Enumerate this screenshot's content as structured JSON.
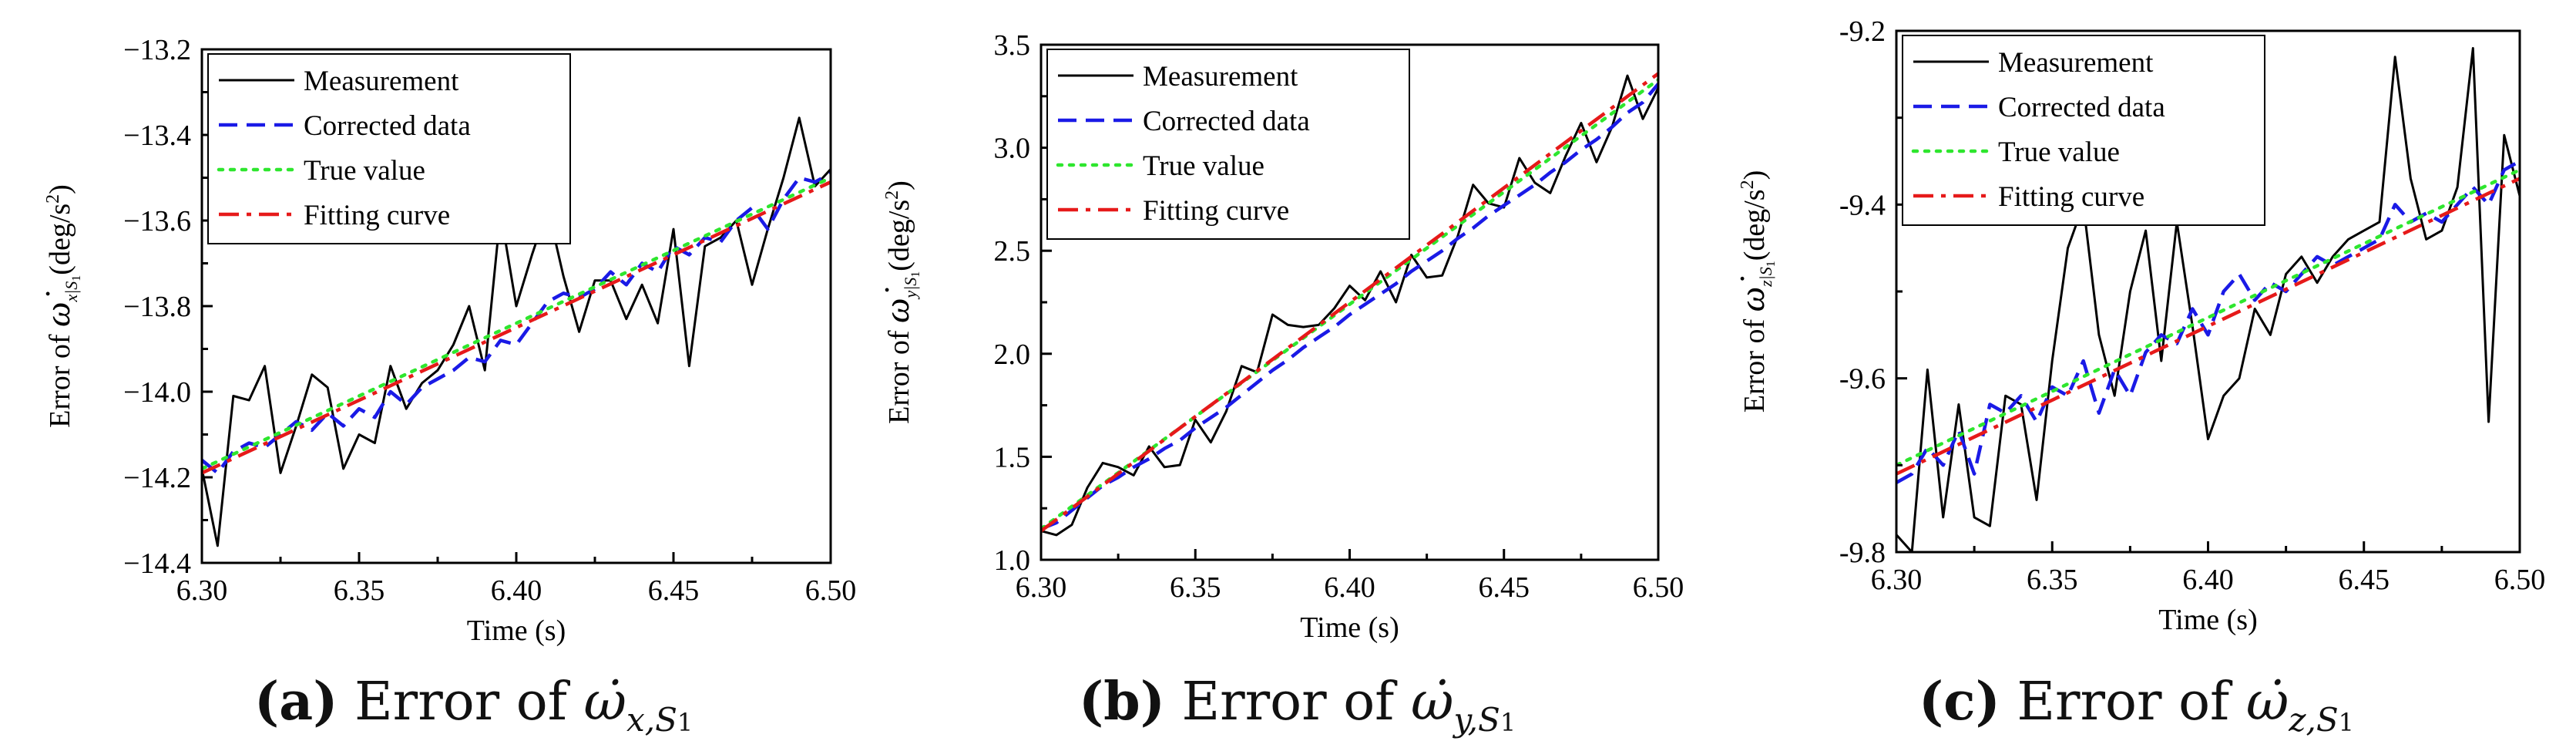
{
  "captions": [
    {
      "tag": "(a)",
      "text": "Error of",
      "sym": "ω̇",
      "sub": "x,S",
      "sub2": "1"
    },
    {
      "tag": "(b)",
      "text": "Error of",
      "sym": "ω̇",
      "sub": "y,S",
      "sub2": "1"
    },
    {
      "tag": "(c)",
      "text": "Error of",
      "sym": "ω̇",
      "sub": "z,S",
      "sub2": "1"
    }
  ],
  "colors": {
    "measurement": "#000000",
    "corrected": "#1a1ae6",
    "true": "#2ee62e",
    "fitting": "#e61a1a"
  },
  "chart_data": [
    {
      "type": "line",
      "title": "",
      "xlabel": "Time (s)",
      "ylabel_prefix": "Error of ",
      "ylabel_sym": "ω̇",
      "ylabel_sub": "x|S",
      "ylabel_sub2": "1",
      "ylabel_unit": "(deg/s",
      "ylabel_exp": "2",
      "ylabel_end": ")",
      "xlim": [
        6.3,
        6.5
      ],
      "ylim": [
        -14.4,
        -13.2
      ],
      "xticks": [
        6.3,
        6.35,
        6.4,
        6.45,
        6.5
      ],
      "xtick_labels": [
        "6.30",
        "6.35",
        "6.40",
        "6.45",
        "6.50"
      ],
      "yticks": [
        -14.4,
        -14.2,
        -14.0,
        -13.8,
        -13.6,
        -13.4,
        -13.2
      ],
      "ytick_labels": [
        "−14.4",
        "−14.2",
        "−14.0",
        "−13.8",
        "−13.6",
        "−13.4",
        "−13.2"
      ],
      "legend": [
        "Measurement",
        "Corrected data",
        "True value",
        "Fitting curve"
      ],
      "legend_loc": "top-left",
      "series": [
        {
          "name": "Measurement",
          "style": "solid",
          "color": "#000000",
          "x": [
            6.3,
            6.305,
            6.31,
            6.315,
            6.32,
            6.325,
            6.33,
            6.335,
            6.34,
            6.345,
            6.35,
            6.355,
            6.36,
            6.365,
            6.37,
            6.375,
            6.38,
            6.385,
            6.39,
            6.395,
            6.4,
            6.405,
            6.41,
            6.415,
            6.42,
            6.425,
            6.43,
            6.435,
            6.44,
            6.445,
            6.45,
            6.455,
            6.46,
            6.465,
            6.47,
            6.475,
            6.48,
            6.485,
            6.49,
            6.495,
            6.5
          ],
          "y": [
            -14.18,
            -14.36,
            -14.01,
            -14.02,
            -13.94,
            -14.19,
            -14.08,
            -13.96,
            -13.99,
            -14.18,
            -14.1,
            -14.12,
            -13.94,
            -14.04,
            -13.98,
            -13.95,
            -13.89,
            -13.8,
            -13.95,
            -13.58,
            -13.8,
            -13.68,
            -13.57,
            -13.73,
            -13.86,
            -13.74,
            -13.74,
            -13.83,
            -13.75,
            -13.84,
            -13.62,
            -13.94,
            -13.66,
            -13.64,
            -13.6,
            -13.75,
            -13.62,
            -13.5,
            -13.36,
            -13.52,
            -13.48
          ]
        },
        {
          "name": "Corrected data",
          "style": "dashed",
          "color": "#1a1ae6",
          "x": [
            6.3,
            6.305,
            6.31,
            6.315,
            6.32,
            6.325,
            6.33,
            6.335,
            6.34,
            6.345,
            6.35,
            6.355,
            6.36,
            6.365,
            6.37,
            6.375,
            6.38,
            6.385,
            6.39,
            6.395,
            6.4,
            6.405,
            6.41,
            6.415,
            6.42,
            6.425,
            6.43,
            6.435,
            6.44,
            6.445,
            6.45,
            6.455,
            6.46,
            6.465,
            6.47,
            6.475,
            6.48,
            6.485,
            6.49,
            6.495,
            6.5
          ],
          "y": [
            -14.16,
            -14.19,
            -14.14,
            -14.12,
            -14.13,
            -14.1,
            -14.07,
            -14.09,
            -14.05,
            -14.08,
            -14.04,
            -14.06,
            -14.0,
            -14.03,
            -13.99,
            -13.97,
            -13.95,
            -13.92,
            -13.93,
            -13.88,
            -13.89,
            -13.84,
            -13.79,
            -13.77,
            -13.78,
            -13.76,
            -13.72,
            -13.75,
            -13.7,
            -13.72,
            -13.66,
            -13.68,
            -13.64,
            -13.65,
            -13.6,
            -13.57,
            -13.62,
            -13.55,
            -13.5,
            -13.51,
            -13.49
          ]
        },
        {
          "name": "True value",
          "style": "dotted",
          "color": "#2ee62e",
          "x": [
            6.3,
            6.5
          ],
          "y": [
            -14.18,
            -13.5
          ]
        },
        {
          "name": "Fitting curve",
          "style": "dashdot",
          "color": "#e61a1a",
          "x": [
            6.3,
            6.5
          ],
          "y": [
            -14.19,
            -13.51
          ]
        }
      ]
    },
    {
      "type": "line",
      "title": "",
      "xlabel": "Time (s)",
      "ylabel_prefix": "Error of ",
      "ylabel_sym": "ω̇",
      "ylabel_sub": "y|S",
      "ylabel_sub2": "1",
      "ylabel_unit": "(deg/s",
      "ylabel_exp": "2",
      "ylabel_end": ")",
      "xlim": [
        6.3,
        6.5
      ],
      "ylim": [
        1.0,
        3.5
      ],
      "xticks": [
        6.3,
        6.35,
        6.4,
        6.45,
        6.5
      ],
      "xtick_labels": [
        "6.30",
        "6.35",
        "6.40",
        "6.45",
        "6.50"
      ],
      "yticks": [
        1.0,
        1.5,
        2.0,
        2.5,
        3.0,
        3.5
      ],
      "ytick_labels": [
        "1.0",
        "1.5",
        "2.0",
        "2.5",
        "3.0",
        "3.5"
      ],
      "legend": [
        "Measurement",
        "Corrected data",
        "True value",
        "Fitting curve"
      ],
      "legend_loc": "top-left",
      "series": [
        {
          "name": "Measurement",
          "style": "solid",
          "color": "#000000",
          "x": [
            6.3,
            6.305,
            6.31,
            6.315,
            6.32,
            6.325,
            6.33,
            6.335,
            6.34,
            6.345,
            6.35,
            6.355,
            6.36,
            6.365,
            6.37,
            6.375,
            6.38,
            6.385,
            6.39,
            6.395,
            6.4,
            6.405,
            6.41,
            6.415,
            6.42,
            6.425,
            6.43,
            6.435,
            6.44,
            6.445,
            6.45,
            6.455,
            6.46,
            6.465,
            6.47,
            6.475,
            6.48,
            6.485,
            6.49,
            6.495,
            6.5
          ],
          "y": [
            1.14,
            1.12,
            1.17,
            1.35,
            1.47,
            1.45,
            1.41,
            1.55,
            1.45,
            1.46,
            1.68,
            1.57,
            1.72,
            1.94,
            1.91,
            2.19,
            2.14,
            2.13,
            2.14,
            2.22,
            2.33,
            2.26,
            2.4,
            2.25,
            2.48,
            2.37,
            2.38,
            2.57,
            2.82,
            2.73,
            2.71,
            2.95,
            2.83,
            2.78,
            2.96,
            3.12,
            2.93,
            3.1,
            3.35,
            3.14,
            3.29
          ]
        },
        {
          "name": "Corrected data",
          "style": "dashed",
          "color": "#1a1ae6",
          "x": [
            6.3,
            6.305,
            6.31,
            6.315,
            6.32,
            6.325,
            6.33,
            6.335,
            6.34,
            6.345,
            6.35,
            6.355,
            6.36,
            6.365,
            6.37,
            6.375,
            6.38,
            6.385,
            6.39,
            6.395,
            6.4,
            6.405,
            6.41,
            6.415,
            6.42,
            6.425,
            6.43,
            6.435,
            6.44,
            6.445,
            6.45,
            6.455,
            6.46,
            6.465,
            6.47,
            6.475,
            6.48,
            6.485,
            6.49,
            6.495,
            6.5
          ],
          "y": [
            1.15,
            1.18,
            1.24,
            1.3,
            1.36,
            1.4,
            1.45,
            1.49,
            1.54,
            1.58,
            1.64,
            1.69,
            1.74,
            1.8,
            1.86,
            1.92,
            1.97,
            2.03,
            2.08,
            2.13,
            2.19,
            2.24,
            2.29,
            2.34,
            2.4,
            2.45,
            2.5,
            2.56,
            2.61,
            2.67,
            2.72,
            2.77,
            2.82,
            2.88,
            2.93,
            2.99,
            3.04,
            3.1,
            3.17,
            3.22,
            3.31
          ]
        },
        {
          "name": "True value",
          "style": "dotted",
          "color": "#2ee62e",
          "x": [
            6.3,
            6.5
          ],
          "y": [
            1.15,
            3.33
          ]
        },
        {
          "name": "Fitting curve",
          "style": "dashdot",
          "color": "#e61a1a",
          "x": [
            6.3,
            6.5
          ],
          "y": [
            1.14,
            3.36
          ]
        }
      ]
    },
    {
      "type": "line",
      "title": "",
      "xlabel": "Time (s)",
      "ylabel_prefix": "Error of ",
      "ylabel_sym": "ω̇",
      "ylabel_sub": "z|S",
      "ylabel_sub2": "1",
      "ylabel_unit": "(deg/s",
      "ylabel_exp": "2",
      "ylabel_end": ")",
      "xlim": [
        6.3,
        6.5
      ],
      "ylim": [
        -9.8,
        -9.2
      ],
      "xticks": [
        6.3,
        6.35,
        6.4,
        6.45,
        6.5
      ],
      "xtick_labels": [
        "6.30",
        "6.35",
        "6.40",
        "6.45",
        "6.50"
      ],
      "yticks": [
        -9.8,
        -9.6,
        -9.4,
        -9.2
      ],
      "ytick_labels": [
        "-9.8",
        "-9.6",
        "-9.4",
        "-9.2"
      ],
      "legend": [
        "Measurement",
        "Corrected data",
        "True value",
        "Fitting curve"
      ],
      "legend_loc": "top-left",
      "series": [
        {
          "name": "Measurement",
          "style": "solid",
          "color": "#000000",
          "x": [
            6.3,
            6.305,
            6.31,
            6.315,
            6.32,
            6.325,
            6.33,
            6.335,
            6.34,
            6.345,
            6.35,
            6.355,
            6.36,
            6.365,
            6.37,
            6.375,
            6.38,
            6.385,
            6.39,
            6.395,
            6.4,
            6.405,
            6.41,
            6.415,
            6.42,
            6.425,
            6.43,
            6.435,
            6.44,
            6.445,
            6.45,
            6.455,
            6.46,
            6.465,
            6.47,
            6.475,
            6.48,
            6.485,
            6.49,
            6.495,
            6.5
          ],
          "y": [
            -9.78,
            -9.8,
            -9.59,
            -9.76,
            -9.63,
            -9.76,
            -9.77,
            -9.62,
            -9.63,
            -9.74,
            -9.58,
            -9.45,
            -9.4,
            -9.55,
            -9.62,
            -9.5,
            -9.43,
            -9.58,
            -9.42,
            -9.54,
            -9.67,
            -9.62,
            -9.6,
            -9.52,
            -9.55,
            -9.48,
            -9.46,
            -9.49,
            -9.46,
            -9.44,
            -9.43,
            -9.42,
            -9.23,
            -9.37,
            -9.44,
            -9.43,
            -9.38,
            -9.22,
            -9.65,
            -9.32,
            -9.39
          ]
        },
        {
          "name": "Corrected data",
          "style": "dashed",
          "color": "#1a1ae6",
          "x": [
            6.3,
            6.305,
            6.31,
            6.315,
            6.32,
            6.325,
            6.33,
            6.335,
            6.34,
            6.345,
            6.35,
            6.355,
            6.36,
            6.365,
            6.37,
            6.375,
            6.38,
            6.385,
            6.39,
            6.395,
            6.4,
            6.405,
            6.41,
            6.415,
            6.42,
            6.425,
            6.43,
            6.435,
            6.44,
            6.445,
            6.45,
            6.455,
            6.46,
            6.465,
            6.47,
            6.475,
            6.48,
            6.485,
            6.49,
            6.495,
            6.5
          ],
          "y": [
            -9.72,
            -9.71,
            -9.68,
            -9.7,
            -9.66,
            -9.71,
            -9.63,
            -9.64,
            -9.62,
            -9.65,
            -9.61,
            -9.62,
            -9.58,
            -9.64,
            -9.59,
            -9.62,
            -9.57,
            -9.55,
            -9.56,
            -9.52,
            -9.55,
            -9.5,
            -9.48,
            -9.51,
            -9.49,
            -9.5,
            -9.48,
            -9.46,
            -9.47,
            -9.46,
            -9.45,
            -9.44,
            -9.4,
            -9.42,
            -9.41,
            -9.42,
            -9.4,
            -9.38,
            -9.4,
            -9.36,
            -9.35
          ]
        },
        {
          "name": "True value",
          "style": "dotted",
          "color": "#2ee62e",
          "x": [
            6.3,
            6.5
          ],
          "y": [
            -9.7,
            -9.36
          ]
        },
        {
          "name": "Fitting curve",
          "style": "dashdot",
          "color": "#e61a1a",
          "x": [
            6.3,
            6.5
          ],
          "y": [
            -9.71,
            -9.37
          ]
        }
      ]
    }
  ]
}
